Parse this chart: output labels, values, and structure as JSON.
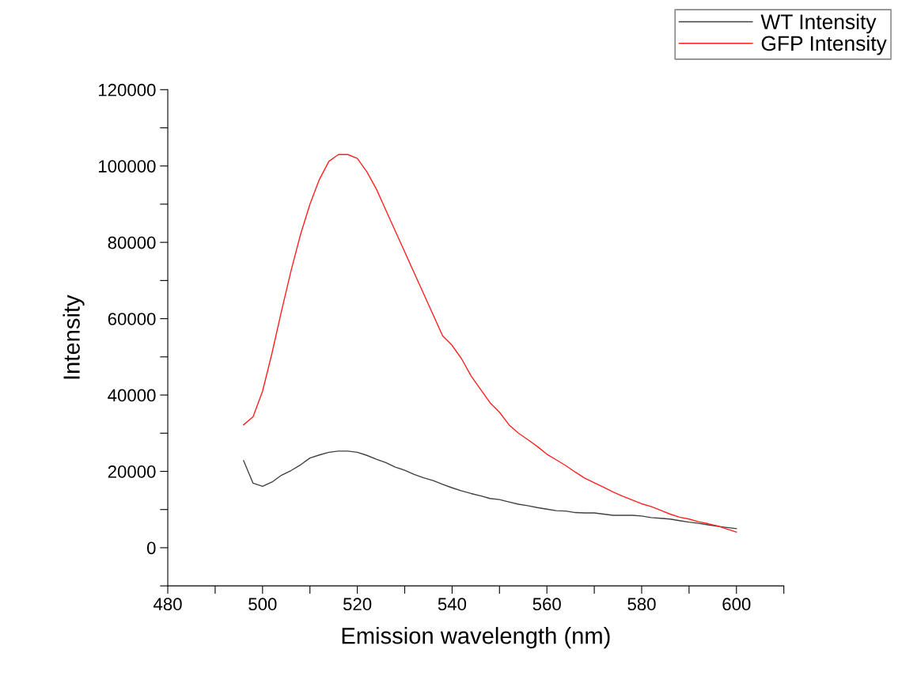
{
  "chart_data": {
    "type": "line",
    "xlabel": "Emission wavelength (nm)",
    "ylabel": "Intensity",
    "x": [
      496,
      498,
      500,
      502,
      504,
      506,
      508,
      510,
      512,
      514,
      516,
      518,
      520,
      522,
      524,
      526,
      528,
      530,
      532,
      534,
      536,
      538,
      540,
      542,
      544,
      546,
      548,
      550,
      552,
      554,
      556,
      558,
      560,
      562,
      564,
      566,
      568,
      570,
      572,
      574,
      576,
      578,
      580,
      582,
      584,
      586,
      588,
      590,
      592,
      594,
      596,
      598,
      600
    ],
    "series": [
      {
        "name": "WT Intensity",
        "color": "#404040",
        "values": [
          22800,
          16900,
          16100,
          17200,
          19000,
          20200,
          21700,
          23500,
          24300,
          25000,
          25300,
          25300,
          25000,
          24200,
          23200,
          22300,
          21100,
          20300,
          19200,
          18300,
          17600,
          16600,
          15700,
          14900,
          14200,
          13600,
          12900,
          12600,
          12000,
          11400,
          11000,
          10500,
          10100,
          9700,
          9600,
          9200,
          9100,
          9100,
          8800,
          8500,
          8500,
          8500,
          8300,
          7900,
          7700,
          7500,
          7100,
          6700,
          6400,
          6000,
          5600,
          5300,
          5000
        ]
      },
      {
        "name": "GFP Intensity",
        "color": "#ff2020",
        "values": [
          32200,
          34300,
          41000,
          51000,
          62000,
          72500,
          82000,
          90000,
          96500,
          101200,
          103000,
          103000,
          102000,
          98500,
          94000,
          88500,
          83000,
          77500,
          72000,
          66500,
          61000,
          55500,
          53000,
          49500,
          45000,
          41500,
          38000,
          35500,
          32200,
          30000,
          28300,
          26500,
          24500,
          23000,
          21500,
          19800,
          18200,
          17000,
          15800,
          14600,
          13500,
          12500,
          11500,
          10800,
          9800,
          8800,
          8000,
          7500,
          6800,
          6300,
          5700,
          4900,
          4100
        ]
      }
    ],
    "xlim": [
      480,
      610
    ],
    "xticks": [
      480,
      {
        "value": 490,
        "label": null
      },
      500,
      {
        "value": 510,
        "label": null
      },
      520,
      {
        "value": 530,
        "label": null
      },
      540,
      {
        "value": 550,
        "label": null
      },
      560,
      {
        "value": 570,
        "label": null
      },
      580,
      {
        "value": 590,
        "label": null
      },
      600,
      {
        "value": 610,
        "label": null
      }
    ],
    "ylim": [
      -10000,
      120000
    ],
    "yticks": [
      {
        "value": -10000,
        "label": null
      },
      0,
      {
        "value": 10000,
        "label": null
      },
      20000,
      {
        "value": 30000,
        "label": null
      },
      40000,
      {
        "value": 50000,
        "label": null
      },
      60000,
      {
        "value": 70000,
        "label": null
      },
      80000,
      {
        "value": 90000,
        "label": null
      },
      100000,
      {
        "value": 110000,
        "label": null
      },
      120000
    ],
    "grid": false,
    "legend": "top right",
    "marker": "none",
    "line_style": "solid"
  }
}
